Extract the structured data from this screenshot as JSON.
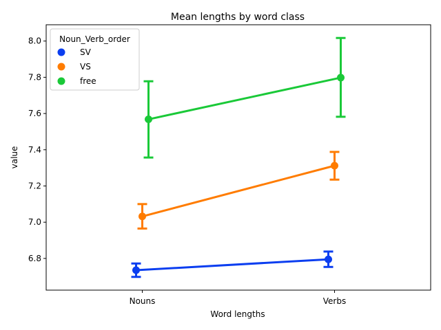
{
  "chart_data": {
    "type": "line",
    "title": "Mean lengths by word class",
    "xlabel": "Word lengths",
    "ylabel": "value",
    "categories": [
      "Nouns",
      "Verbs"
    ],
    "ylim": [
      6.625,
      8.09
    ],
    "yticks": [
      "6.8",
      "7.0",
      "7.2",
      "7.4",
      "7.6",
      "7.8",
      "8.0"
    ],
    "grid": false,
    "legend": {
      "title": "Noun_Verb_order",
      "placement": "top-left"
    },
    "series": [
      {
        "name": "SV",
        "color": "#0b3ef0",
        "values": [
          6.735,
          6.795
        ],
        "ci_low": [
          6.698,
          6.753
        ],
        "ci_high": [
          6.772,
          6.838
        ]
      },
      {
        "name": "VS",
        "color": "#ff7c00",
        "values": [
          7.032,
          7.312
        ],
        "ci_low": [
          6.965,
          7.235
        ],
        "ci_high": [
          7.1,
          7.388
        ]
      },
      {
        "name": "free",
        "color": "#1ac938",
        "values": [
          7.568,
          7.798
        ],
        "ci_low": [
          7.357,
          7.582
        ],
        "ci_high": [
          7.778,
          8.017
        ]
      }
    ]
  }
}
